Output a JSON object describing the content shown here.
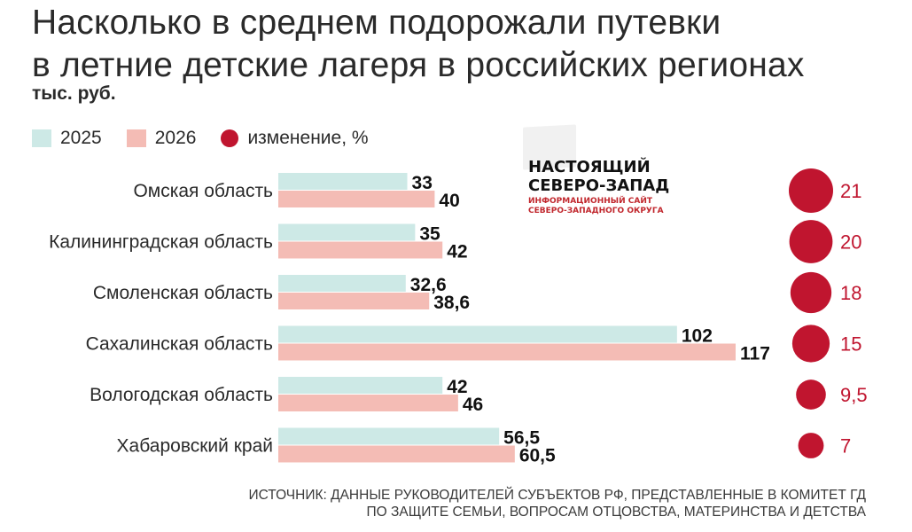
{
  "title": {
    "line1": "Насколько в среднем подорожали путевки",
    "line2": "в летние детские лагеря в российских регионах"
  },
  "unit": "тыс. руб.",
  "legend": {
    "y2025": "2025",
    "y2026": "2026",
    "change": "изменение, %"
  },
  "brand": {
    "name_line1": "НАСТОЯЩИЙ",
    "name_line2": "СЕВЕРО-ЗАПАД",
    "sub_line1": "ИНФОРМАЦИОННЫЙ САЙТ",
    "sub_line2": "СЕВЕРО-ЗАПАДНОГО ОКРУГА"
  },
  "source": {
    "line1": "ИСТОЧНИК: ДАННЫЕ РУКОВОДИТЕЛЕЙ СУБЪЕКТОВ РФ, ПРЕДСТАВЛЕННЫЕ В КОМИТЕТ ГД",
    "line2": "ПО ЗАЩИТЕ СЕМЬИ, ВОПРОСАМ ОТЦОВСТВА, МАТЕРИНСТВА И ДЕТСТВА"
  },
  "colors": {
    "y2025": "#cde9e6",
    "y2026": "#f4bcb5",
    "change": "#c0152f",
    "text": "#1f1f1f"
  },
  "chart_data": {
    "type": "bar",
    "orientation": "horizontal",
    "categories": [
      "Омская область",
      "Калининградская область",
      "Смоленская область",
      "Сахалинская область",
      "Вологодская область",
      "Хабаровский край"
    ],
    "series": [
      {
        "name": "2025",
        "values": [
          33,
          35,
          32.6,
          102,
          42,
          56.5
        ],
        "labels": [
          "33",
          "35",
          "32,6",
          "102",
          "42",
          "56,5"
        ]
      },
      {
        "name": "2026",
        "values": [
          40,
          42,
          38.6,
          117,
          46,
          60.5
        ],
        "labels": [
          "40",
          "42",
          "38,6",
          "117",
          "46",
          "60,5"
        ]
      }
    ],
    "change": {
      "name": "изменение, %",
      "values": [
        21,
        20,
        18,
        15,
        9.5,
        7
      ],
      "labels": [
        "21",
        "20",
        "18",
        "15",
        "9,5",
        "7"
      ]
    },
    "xlim": [
      0,
      117
    ],
    "grid": false,
    "legend": "top-left"
  }
}
